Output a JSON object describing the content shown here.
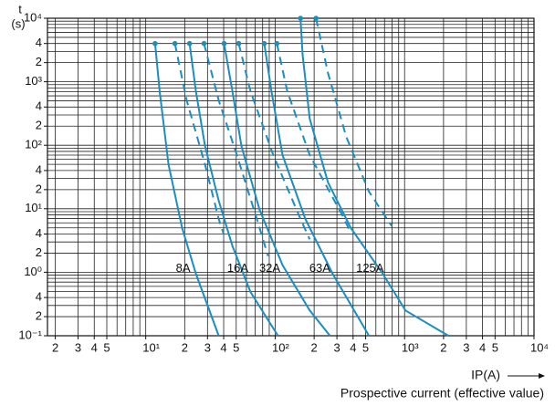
{
  "chart_data": {
    "type": "line",
    "log_x": true,
    "log_y": true,
    "grid": true,
    "y_label": "t",
    "y_unit": "(s)",
    "x_label": "IP(A)",
    "x_sublabel": "Prospective current (effective value)",
    "xlim": [
      1.74,
      10000
    ],
    "ylim": [
      0.1,
      10000
    ],
    "xticks": [
      2,
      3,
      4,
      5,
      {
        "value": 10,
        "label": "10¹"
      },
      {
        "value": 20,
        "label": "2"
      },
      {
        "value": 30,
        "label": "3"
      },
      {
        "value": 40,
        "label": "4"
      },
      {
        "value": 50,
        "label": "5"
      },
      {
        "value": 100,
        "label": "10²"
      },
      {
        "value": 200,
        "label": "2"
      },
      {
        "value": 300,
        "label": "3"
      },
      {
        "value": 400,
        "label": "4"
      },
      {
        "value": 500,
        "label": "5"
      },
      {
        "value": 1000,
        "label": "10³"
      },
      {
        "value": 2000,
        "label": "2"
      },
      {
        "value": 3000,
        "label": "3"
      },
      {
        "value": 4000,
        "label": "4"
      },
      {
        "value": 5000,
        "label": "5"
      },
      {
        "value": 10000,
        "label": "10⁴"
      }
    ],
    "yticks": [
      {
        "value": 10000,
        "label": "10⁴"
      },
      {
        "value": 4000,
        "label": "4"
      },
      {
        "value": 2000,
        "label": "2"
      },
      {
        "value": 1000,
        "label": "10³"
      },
      {
        "value": 400,
        "label": "4"
      },
      {
        "value": 200,
        "label": "2"
      },
      {
        "value": 100,
        "label": "10²"
      },
      {
        "value": 40,
        "label": "4"
      },
      {
        "value": 20,
        "label": "2"
      },
      {
        "value": 10,
        "label": "10¹"
      },
      4,
      2,
      {
        "value": 1,
        "label": "10⁰"
      },
      {
        "value": 0.4,
        "label": "4"
      },
      {
        "value": 0.2,
        "label": "2"
      },
      {
        "value": 0.1,
        "label": "10⁻¹"
      }
    ],
    "xgrid": [
      2,
      3,
      4,
      5,
      6,
      7,
      8,
      9,
      10,
      20,
      30,
      40,
      50,
      60,
      70,
      80,
      90,
      100,
      200,
      300,
      400,
      500,
      600,
      700,
      800,
      900,
      1000,
      2000,
      3000,
      4000,
      5000,
      6000,
      7000,
      8000,
      9000
    ],
    "ygrid": [
      0.2,
      0.3,
      0.4,
      0.5,
      0.6,
      0.7,
      0.8,
      0.9,
      1,
      2,
      3,
      4,
      5,
      6,
      7,
      8,
      9,
      10,
      20,
      30,
      40,
      50,
      60,
      70,
      80,
      90,
      100,
      200,
      300,
      400,
      500,
      600,
      700,
      800,
      900,
      1000,
      2000,
      3000,
      4000,
      5000,
      6000,
      7000,
      8000,
      9000
    ],
    "color": "#1b8ec0",
    "series": [
      {
        "name": "8A",
        "solid": {
          "x": [
            11.8,
            12.8,
            15,
            19.1,
            24.4,
            36.6
          ],
          "values": [
            4000,
            708,
            50,
            5,
            0.95,
            0.1
          ]
        },
        "dashed": {
          "x": [
            16.8,
            20.7,
            28.7,
            36.6,
            40
          ],
          "values": [
            4000,
            510,
            50,
            6.9,
            4
          ]
        }
      },
      {
        "name": "16A",
        "solid": {
          "x": [
            21.8,
            24.4,
            28.7,
            36.6,
            46.7,
            64.5,
            105
          ],
          "values": [
            4000,
            708,
            97,
            13.4,
            2.6,
            0.49,
            0.1
          ]
        },
        "dashed": {
          "x": [
            28.2,
            36.6,
            50.6,
            75.8,
            88
          ],
          "values": [
            4000,
            510,
            70,
            5,
            1.8
          ]
        }
      },
      {
        "name": "32A",
        "solid": {
          "x": [
            40.3,
            46.7,
            54.9,
            75.8,
            114,
            185,
            265
          ],
          "values": [
            4000,
            708,
            97,
            9.6,
            1.3,
            0.25,
            0.1
          ]
        },
        "dashed": {
          "x": [
            52.3,
            64.5,
            96.8,
            157,
            185
          ],
          "values": [
            4000,
            708,
            70,
            6.9,
            3.3
          ]
        }
      },
      {
        "name": "63A",
        "solid": {
          "x": [
            82.3,
            93.7,
            114,
            171,
            278,
            531
          ],
          "values": [
            4000,
            708,
            70,
            6.9,
            0.95,
            0.1
          ]
        },
        "dashed": {
          "x": [
            103,
            124,
            185,
            327,
            384
          ],
          "values": [
            4000,
            708,
            70,
            8.2,
            4.2
          ]
        }
      },
      {
        "name": "125A",
        "solid": {
          "x": [
            157,
            163,
            185,
            256,
            384,
            678,
            1016,
            2180
          ],
          "values": [
            10000,
            2660,
            263,
            26,
            5,
            0.95,
            0.25,
            0.1
          ]
        },
        "dashed": {
          "x": [
            207,
            256,
            354,
            531,
            797
          ],
          "values": [
            10000,
            1374,
            136,
            18.6,
            5.3
          ]
        }
      }
    ]
  }
}
